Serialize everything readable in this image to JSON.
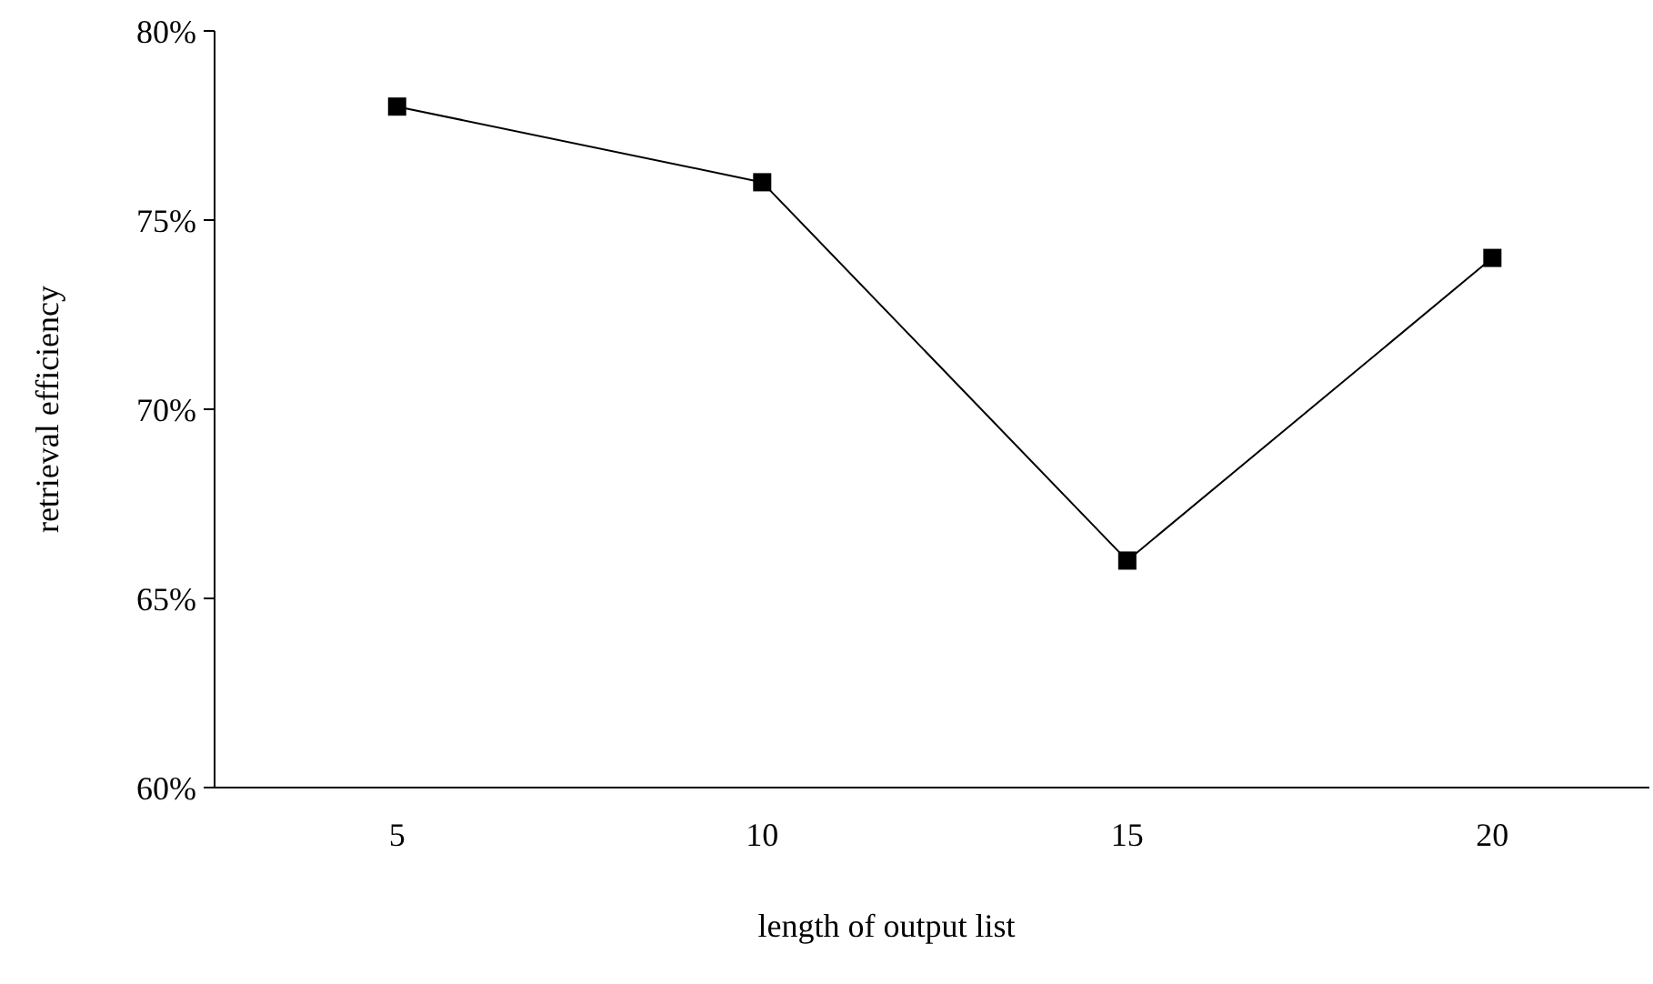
{
  "chart_data": {
    "type": "line",
    "xlabel": "length of output list",
    "ylabel": "retrieval efficiency",
    "categories": [
      "5",
      "10",
      "15",
      "20"
    ],
    "series": [
      {
        "color": "#000000",
        "values": [
          78,
          76,
          66,
          74
        ]
      }
    ],
    "ylim": [
      60,
      80
    ],
    "yticks": [
      {
        "value": 60,
        "label": "60%"
      },
      {
        "value": 65,
        "label": "65%"
      },
      {
        "value": 70,
        "label": "70%"
      },
      {
        "value": 75,
        "label": "75%"
      },
      {
        "value": 80,
        "label": "80%"
      }
    ],
    "marker": "square",
    "line_style": "solid",
    "grid": false
  }
}
